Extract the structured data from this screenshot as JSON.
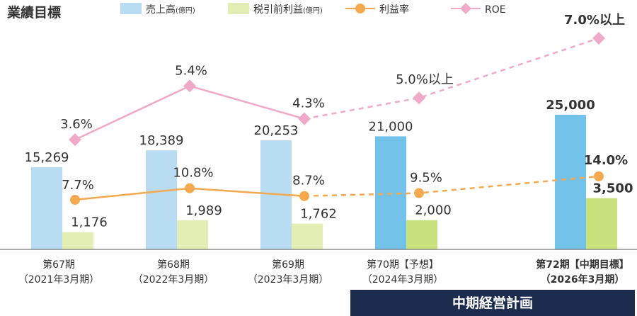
{
  "chart_data": {
    "type": "bar",
    "title": "業績目標",
    "categories": [
      [
        "第67期",
        "（2021年3月期）"
      ],
      [
        "第68期",
        "（2022年3月期）"
      ],
      [
        "第69期",
        "（2023年3月期）"
      ],
      [
        "第70期【予想】",
        "（2024年3月期）"
      ],
      [
        "第72期【中期目標】",
        "（2026年3月期）"
      ]
    ],
    "series": [
      {
        "name": "売上高",
        "unit": "(億円)",
        "kind": "bar",
        "values": [
          15269,
          18389,
          20253,
          21000,
          25000
        ],
        "labels": [
          "15,269",
          "18,389",
          "20,253",
          "21,000",
          "25,000"
        ],
        "color": "#b8dcf2",
        "forecast_color": "#72c2ea"
      },
      {
        "name": "税引前利益",
        "unit": "(億円)",
        "kind": "bar",
        "values": [
          1176,
          1989,
          1762,
          2000,
          3500
        ],
        "labels": [
          "1,176",
          "1,989",
          "1,762",
          "2,000",
          "3,500"
        ],
        "color": "#e3eeb4",
        "forecast_color": "#c8e27e"
      },
      {
        "name": "利益率",
        "kind": "line",
        "values": [
          7.7,
          10.8,
          8.7,
          9.5,
          14.0
        ],
        "labels": [
          "7.7%",
          "10.8%",
          "8.7%",
          "9.5%",
          "14.0%"
        ],
        "color": "#f5a94e"
      },
      {
        "name": "ROE",
        "kind": "line",
        "values": [
          3.6,
          5.4,
          4.3,
          5.0,
          7.0
        ],
        "labels": [
          "3.6%",
          "5.4%",
          "4.3%",
          "5.0%以上",
          "7.0%以上"
        ],
        "color": "#f0a9c9"
      }
    ],
    "forecast_from_index": 2,
    "bold_index": 4,
    "bar_ylim": [
      0,
      25000
    ],
    "legend": "top",
    "grid": false
  },
  "banner": {
    "text": "中期経営計画",
    "bg_color": "#1d2b4f",
    "text_color": "#ffffff"
  }
}
